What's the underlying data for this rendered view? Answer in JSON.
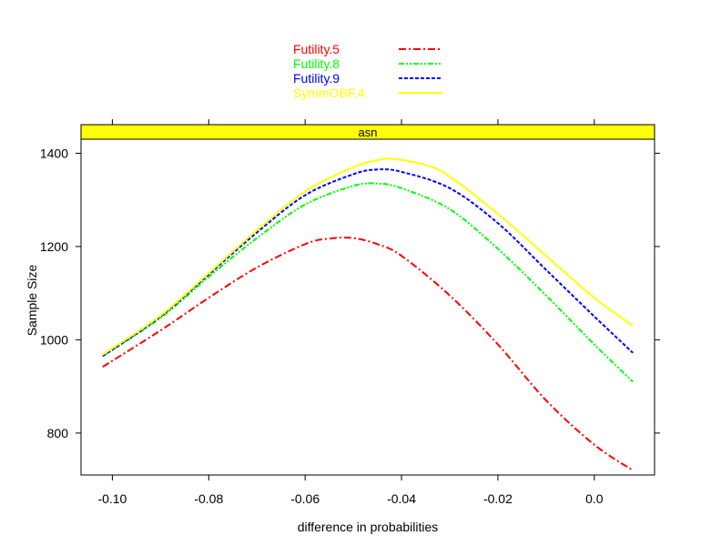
{
  "chart_data": {
    "type": "line",
    "panel_title": "asn",
    "xlabel": "difference in probabilities",
    "ylabel": "Sample Size",
    "xlim": [
      -0.1065,
      0.0125
    ],
    "ylim": [
      710,
      1430
    ],
    "x_ticks": [
      -0.1,
      -0.08,
      -0.06,
      -0.04,
      -0.02,
      0.0
    ],
    "x_tick_labels": [
      "-0.10",
      "-0.08",
      "-0.06",
      "-0.04",
      "-0.02",
      "0.0"
    ],
    "y_ticks": [
      800,
      1000,
      1200,
      1400
    ],
    "y_tick_labels": [
      "800",
      "1000",
      "1200",
      "1400"
    ],
    "legend_position": "top",
    "series": [
      {
        "name": "Futility.5",
        "color": "#ff0000",
        "dash": "8,3,2,3",
        "x": [
          -0.102,
          -0.09,
          -0.08,
          -0.07,
          -0.06,
          -0.055,
          -0.05,
          -0.045,
          -0.04,
          -0.03,
          -0.02,
          -0.01,
          0.0,
          0.008
        ],
        "y": [
          942,
          1020,
          1090,
          1155,
          1205,
          1217,
          1218,
          1205,
          1180,
          1095,
          990,
          870,
          775,
          720
        ]
      },
      {
        "name": "Futility.8",
        "color": "#00ff00",
        "dash": "6,2,2,2,2,2",
        "x": [
          -0.102,
          -0.09,
          -0.08,
          -0.07,
          -0.06,
          -0.05,
          -0.045,
          -0.04,
          -0.03,
          -0.02,
          -0.01,
          0.0,
          0.008
        ],
        "y": [
          965,
          1047,
          1135,
          1218,
          1290,
          1330,
          1335,
          1325,
          1280,
          1195,
          1095,
          990,
          910
        ]
      },
      {
        "name": "Futility.9",
        "color": "#0000ff",
        "dash": "4,2",
        "x": [
          -0.102,
          -0.09,
          -0.08,
          -0.07,
          -0.06,
          -0.05,
          -0.045,
          -0.04,
          -0.03,
          -0.02,
          -0.01,
          0.0,
          0.008
        ],
        "y": [
          965,
          1050,
          1140,
          1230,
          1310,
          1355,
          1365,
          1360,
          1325,
          1250,
          1150,
          1050,
          972
        ]
      },
      {
        "name": "SymmOBF.4",
        "color": "#ffff00",
        "dash": "",
        "x": [
          -0.102,
          -0.09,
          -0.08,
          -0.07,
          -0.06,
          -0.05,
          -0.045,
          -0.042,
          -0.035,
          -0.03,
          -0.02,
          -0.01,
          0.0,
          0.008
        ],
        "y": [
          968,
          1052,
          1143,
          1235,
          1318,
          1370,
          1385,
          1388,
          1375,
          1350,
          1270,
          1180,
          1090,
          1030
        ]
      }
    ]
  }
}
